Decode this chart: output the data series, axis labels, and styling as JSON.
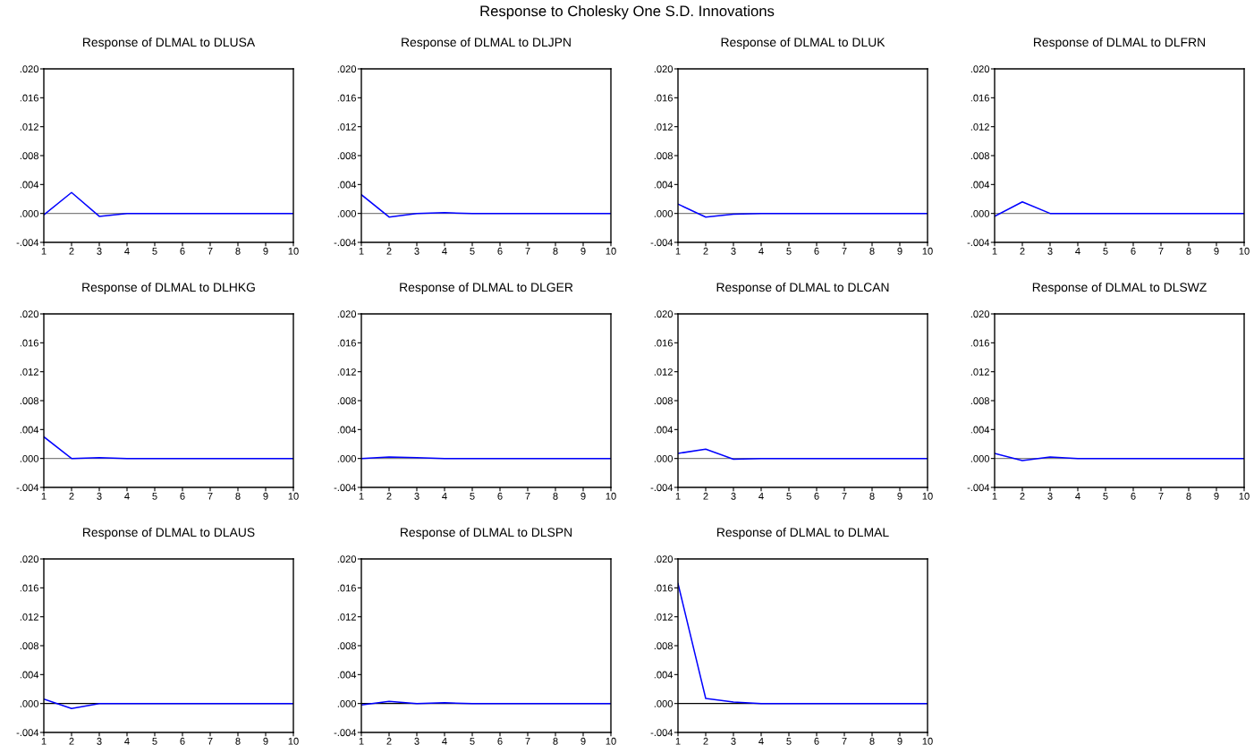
{
  "chart_data": [
    {
      "type": "line",
      "title": "Response of DLMAL to DLUSA",
      "annotations": [
        "Response to Cholesky One S.D. Innovations"
      ],
      "x": [
        1,
        2,
        3,
        4,
        5,
        6,
        7,
        8,
        9,
        10
      ],
      "series": [
        {
          "color": "#0000ff",
          "values": [
            -0.0002,
            0.0029,
            -0.0004,
            0.0,
            0.0,
            0.0,
            0.0,
            0.0,
            0.0,
            0.0
          ]
        }
      ],
      "xlim": [
        1,
        10
      ],
      "xticks": [
        1,
        2,
        3,
        4,
        5,
        6,
        7,
        8,
        9,
        10
      ],
      "ylim": [
        -0.004,
        0.02
      ],
      "yticks": [
        {
          "value": -0.004,
          "label": "-.004"
        },
        {
          "value": 0.0,
          "label": ".000"
        },
        {
          "value": 0.004,
          "label": ".004"
        },
        {
          "value": 0.008,
          "label": ".008"
        },
        {
          "value": 0.012,
          "label": ".012"
        },
        {
          "value": 0.016,
          "label": ".016"
        },
        {
          "value": 0.02,
          "label": ".020"
        }
      ],
      "ref_lines": [
        {
          "axis": "y",
          "value": 0.0,
          "color": "#808080"
        }
      ]
    },
    {
      "type": "line",
      "title": "Response of DLMAL to DLJPN",
      "x": [
        1,
        2,
        3,
        4,
        5,
        6,
        7,
        8,
        9,
        10
      ],
      "series": [
        {
          "color": "#0000ff",
          "values": [
            0.0026,
            -0.0005,
            0.0,
            0.0001,
            0.0,
            0.0,
            0.0,
            0.0,
            0.0,
            0.0
          ]
        }
      ],
      "xlim": [
        1,
        10
      ],
      "xticks": [
        1,
        2,
        3,
        4,
        5,
        6,
        7,
        8,
        9,
        10
      ],
      "ylim": [
        -0.004,
        0.02
      ],
      "yticks": [
        {
          "value": -0.004,
          "label": "-.004"
        },
        {
          "value": 0.0,
          "label": ".000"
        },
        {
          "value": 0.004,
          "label": ".004"
        },
        {
          "value": 0.008,
          "label": ".008"
        },
        {
          "value": 0.012,
          "label": ".012"
        },
        {
          "value": 0.016,
          "label": ".016"
        },
        {
          "value": 0.02,
          "label": ".020"
        }
      ],
      "ref_lines": [
        {
          "axis": "y",
          "value": 0.0,
          "color": "#808080"
        }
      ]
    },
    {
      "type": "line",
      "title": "Response of DLMAL to DLUK",
      "x": [
        1,
        2,
        3,
        4,
        5,
        6,
        7,
        8,
        9,
        10
      ],
      "series": [
        {
          "color": "#0000ff",
          "values": [
            0.0013,
            -0.0005,
            -0.0001,
            0.0,
            0.0,
            0.0,
            0.0,
            0.0,
            0.0,
            0.0
          ]
        }
      ],
      "xlim": [
        1,
        10
      ],
      "xticks": [
        1,
        2,
        3,
        4,
        5,
        6,
        7,
        8,
        9,
        10
      ],
      "ylim": [
        -0.004,
        0.02
      ],
      "yticks": [
        {
          "value": -0.004,
          "label": "-.004"
        },
        {
          "value": 0.0,
          "label": ".000"
        },
        {
          "value": 0.004,
          "label": ".004"
        },
        {
          "value": 0.008,
          "label": ".008"
        },
        {
          "value": 0.012,
          "label": ".012"
        },
        {
          "value": 0.016,
          "label": ".016"
        },
        {
          "value": 0.02,
          "label": ".020"
        }
      ],
      "ref_lines": [
        {
          "axis": "y",
          "value": 0.0,
          "color": "#808080"
        }
      ]
    },
    {
      "type": "line",
      "title": "Response of DLMAL to DLFRN",
      "x": [
        1,
        2,
        3,
        4,
        5,
        6,
        7,
        8,
        9,
        10
      ],
      "series": [
        {
          "color": "#0000ff",
          "values": [
            -0.0004,
            0.0016,
            0.0,
            0.0,
            0.0,
            0.0,
            0.0,
            0.0,
            0.0,
            0.0
          ]
        }
      ],
      "xlim": [
        1,
        10
      ],
      "xticks": [
        1,
        2,
        3,
        4,
        5,
        6,
        7,
        8,
        9,
        10
      ],
      "ylim": [
        -0.004,
        0.02
      ],
      "yticks": [
        {
          "value": -0.004,
          "label": "-.004"
        },
        {
          "value": 0.0,
          "label": ".000"
        },
        {
          "value": 0.004,
          "label": ".004"
        },
        {
          "value": 0.008,
          "label": ".008"
        },
        {
          "value": 0.012,
          "label": ".012"
        },
        {
          "value": 0.016,
          "label": ".016"
        },
        {
          "value": 0.02,
          "label": ".020"
        }
      ],
      "ref_lines": [
        {
          "axis": "y",
          "value": 0.0,
          "color": "#808080"
        }
      ]
    },
    {
      "type": "line",
      "title": "Response of DLMAL to DLHKG",
      "x": [
        1,
        2,
        3,
        4,
        5,
        6,
        7,
        8,
        9,
        10
      ],
      "series": [
        {
          "color": "#0000ff",
          "values": [
            0.003,
            0.0,
            0.0001,
            0.0,
            0.0,
            0.0,
            0.0,
            0.0,
            0.0,
            0.0
          ]
        }
      ],
      "xlim": [
        1,
        10
      ],
      "xticks": [
        1,
        2,
        3,
        4,
        5,
        6,
        7,
        8,
        9,
        10
      ],
      "ylim": [
        -0.004,
        0.02
      ],
      "yticks": [
        {
          "value": -0.004,
          "label": "-.004"
        },
        {
          "value": 0.0,
          "label": ".000"
        },
        {
          "value": 0.004,
          "label": ".004"
        },
        {
          "value": 0.008,
          "label": ".008"
        },
        {
          "value": 0.012,
          "label": ".012"
        },
        {
          "value": 0.016,
          "label": ".016"
        },
        {
          "value": 0.02,
          "label": ".020"
        }
      ],
      "ref_lines": [
        {
          "axis": "y",
          "value": 0.0,
          "color": "#808080"
        }
      ]
    },
    {
      "type": "line",
      "title": "Response of DLMAL to DLGER",
      "x": [
        1,
        2,
        3,
        4,
        5,
        6,
        7,
        8,
        9,
        10
      ],
      "series": [
        {
          "color": "#0000ff",
          "values": [
            0.0,
            0.0002,
            0.0001,
            0.0,
            0.0,
            0.0,
            0.0,
            0.0,
            0.0,
            0.0
          ]
        }
      ],
      "xlim": [
        1,
        10
      ],
      "xticks": [
        1,
        2,
        3,
        4,
        5,
        6,
        7,
        8,
        9,
        10
      ],
      "ylim": [
        -0.004,
        0.02
      ],
      "yticks": [
        {
          "value": -0.004,
          "label": "-.004"
        },
        {
          "value": 0.0,
          "label": ".000"
        },
        {
          "value": 0.004,
          "label": ".004"
        },
        {
          "value": 0.008,
          "label": ".008"
        },
        {
          "value": 0.012,
          "label": ".012"
        },
        {
          "value": 0.016,
          "label": ".016"
        },
        {
          "value": 0.02,
          "label": ".020"
        }
      ],
      "ref_lines": [
        {
          "axis": "y",
          "value": 0.0,
          "color": "#808080"
        }
      ]
    },
    {
      "type": "line",
      "title": "Response of DLMAL to DLCAN",
      "x": [
        1,
        2,
        3,
        4,
        5,
        6,
        7,
        8,
        9,
        10
      ],
      "series": [
        {
          "color": "#0000ff",
          "values": [
            0.0007,
            0.0013,
            -0.0001,
            0.0,
            0.0,
            0.0,
            0.0,
            0.0,
            0.0,
            0.0
          ]
        }
      ],
      "xlim": [
        1,
        10
      ],
      "xticks": [
        1,
        2,
        3,
        4,
        5,
        6,
        7,
        8,
        9,
        10
      ],
      "ylim": [
        -0.004,
        0.02
      ],
      "yticks": [
        {
          "value": -0.004,
          "label": "-.004"
        },
        {
          "value": 0.0,
          "label": ".000"
        },
        {
          "value": 0.004,
          "label": ".004"
        },
        {
          "value": 0.008,
          "label": ".008"
        },
        {
          "value": 0.012,
          "label": ".012"
        },
        {
          "value": 0.016,
          "label": ".016"
        },
        {
          "value": 0.02,
          "label": ".020"
        }
      ],
      "ref_lines": [
        {
          "axis": "y",
          "value": 0.0,
          "color": "#808080"
        }
      ]
    },
    {
      "type": "line",
      "title": "Response of DLMAL to DLSWZ",
      "x": [
        1,
        2,
        3,
        4,
        5,
        6,
        7,
        8,
        9,
        10
      ],
      "series": [
        {
          "color": "#0000ff",
          "values": [
            0.0007,
            -0.0003,
            0.0002,
            0.0,
            0.0,
            0.0,
            0.0,
            0.0,
            0.0,
            0.0
          ]
        }
      ],
      "xlim": [
        1,
        10
      ],
      "xticks": [
        1,
        2,
        3,
        4,
        5,
        6,
        7,
        8,
        9,
        10
      ],
      "ylim": [
        -0.004,
        0.02
      ],
      "yticks": [
        {
          "value": -0.004,
          "label": "-.004"
        },
        {
          "value": 0.0,
          "label": ".000"
        },
        {
          "value": 0.004,
          "label": ".004"
        },
        {
          "value": 0.008,
          "label": ".008"
        },
        {
          "value": 0.012,
          "label": ".012"
        },
        {
          "value": 0.016,
          "label": ".016"
        },
        {
          "value": 0.02,
          "label": ".020"
        }
      ],
      "ref_lines": [
        {
          "axis": "y",
          "value": 0.0,
          "color": "#808080"
        }
      ]
    },
    {
      "type": "line",
      "title": "Response of DLMAL to DLAUS",
      "x": [
        1,
        2,
        3,
        4,
        5,
        6,
        7,
        8,
        9,
        10
      ],
      "series": [
        {
          "color": "#0000ff",
          "values": [
            0.0006,
            -0.0007,
            0.0,
            0.0,
            0.0,
            0.0,
            0.0,
            0.0,
            0.0,
            0.0
          ]
        }
      ],
      "xlim": [
        1,
        10
      ],
      "xticks": [
        1,
        2,
        3,
        4,
        5,
        6,
        7,
        8,
        9,
        10
      ],
      "ylim": [
        -0.004,
        0.02
      ],
      "yticks": [
        {
          "value": -0.004,
          "label": "-.004"
        },
        {
          "value": 0.0,
          "label": ".000"
        },
        {
          "value": 0.004,
          "label": ".004"
        },
        {
          "value": 0.008,
          "label": ".008"
        },
        {
          "value": 0.012,
          "label": ".012"
        },
        {
          "value": 0.016,
          "label": ".016"
        },
        {
          "value": 0.02,
          "label": ".020"
        }
      ],
      "ref_lines": [
        {
          "axis": "y",
          "value": 0.0,
          "color": "#000000"
        }
      ]
    },
    {
      "type": "line",
      "title": "Response of DLMAL to DLSPN",
      "x": [
        1,
        2,
        3,
        4,
        5,
        6,
        7,
        8,
        9,
        10
      ],
      "series": [
        {
          "color": "#0000ff",
          "values": [
            -0.0002,
            0.0003,
            0.0,
            0.0001,
            0.0,
            0.0,
            0.0,
            0.0,
            0.0,
            0.0
          ]
        }
      ],
      "xlim": [
        1,
        10
      ],
      "xticks": [
        1,
        2,
        3,
        4,
        5,
        6,
        7,
        8,
        9,
        10
      ],
      "ylim": [
        -0.004,
        0.02
      ],
      "yticks": [
        {
          "value": -0.004,
          "label": "-.004"
        },
        {
          "value": 0.0,
          "label": ".000"
        },
        {
          "value": 0.004,
          "label": ".004"
        },
        {
          "value": 0.008,
          "label": ".008"
        },
        {
          "value": 0.012,
          "label": ".012"
        },
        {
          "value": 0.016,
          "label": ".016"
        },
        {
          "value": 0.02,
          "label": ".020"
        }
      ],
      "ref_lines": [
        {
          "axis": "y",
          "value": 0.0,
          "color": "#000000"
        }
      ]
    },
    {
      "type": "line",
      "title": "Response of DLMAL to DLMAL",
      "x": [
        1,
        2,
        3,
        4,
        5,
        6,
        7,
        8,
        9,
        10
      ],
      "series": [
        {
          "color": "#0000ff",
          "values": [
            0.0166,
            0.0007,
            0.0002,
            0.0,
            0.0,
            0.0,
            0.0,
            0.0,
            0.0,
            0.0
          ]
        }
      ],
      "xlim": [
        1,
        10
      ],
      "xticks": [
        1,
        2,
        3,
        4,
        5,
        6,
        7,
        8,
        9,
        10
      ],
      "ylim": [
        -0.004,
        0.02
      ],
      "yticks": [
        {
          "value": -0.004,
          "label": "-.004"
        },
        {
          "value": 0.0,
          "label": ".000"
        },
        {
          "value": 0.004,
          "label": ".004"
        },
        {
          "value": 0.008,
          "label": ".008"
        },
        {
          "value": 0.012,
          "label": ".012"
        },
        {
          "value": 0.016,
          "label": ".016"
        },
        {
          "value": 0.02,
          "label": ".020"
        }
      ],
      "ref_lines": [
        {
          "axis": "y",
          "value": 0.0,
          "color": "#000000"
        }
      ]
    }
  ]
}
